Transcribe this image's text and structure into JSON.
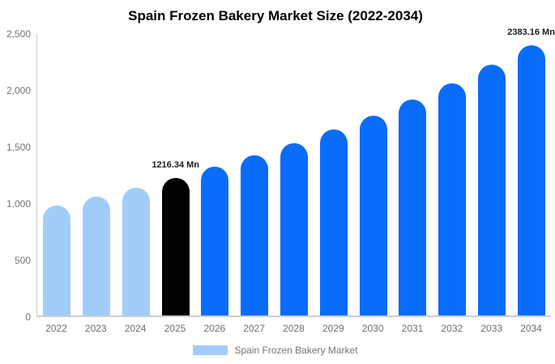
{
  "chart_data": {
    "type": "bar",
    "title": "Spain Frozen Bakery Market Size (2022-2034)",
    "categories": [
      "2022",
      "2023",
      "2024",
      "2025",
      "2026",
      "2027",
      "2028",
      "2029",
      "2030",
      "2031",
      "2032",
      "2033",
      "2034"
    ],
    "values": [
      972,
      1047,
      1129,
      1216.34,
      1311,
      1412,
      1522,
      1640,
      1767,
      1905,
      2052,
      2211,
      2383.16
    ],
    "value_labels": [
      "",
      "",
      "",
      "1216.34 Mn",
      "",
      "",
      "",
      "",
      "",
      "",
      "",
      "",
      "2383.16 Mn"
    ],
    "bar_roles": [
      "historical",
      "historical",
      "historical",
      "base_year",
      "forecast",
      "forecast",
      "forecast",
      "forecast",
      "forecast",
      "forecast",
      "forecast",
      "forecast",
      "forecast"
    ],
    "palette": {
      "historical": "#a2cdfa",
      "base_year": "#000000",
      "forecast": "#0a6cfa"
    },
    "ylim": [
      0,
      2500
    ],
    "yticks": [
      {
        "label": "0",
        "v": 0
      },
      {
        "label": "500",
        "v": 500
      },
      {
        "label": "1,000",
        "v": 1000
      },
      {
        "label": "1,500",
        "v": 1500
      },
      {
        "label": "2,000",
        "v": 2000
      },
      {
        "label": "2,500",
        "v": 2500
      }
    ],
    "xlabel": "",
    "ylabel": "",
    "grid": false,
    "axis_color": "#cccccc",
    "background": "#ffffff",
    "legend": {
      "position": "bottom",
      "label": "Spain Frozen Bakery Market",
      "swatch_color": "#a2cdfa"
    }
  }
}
